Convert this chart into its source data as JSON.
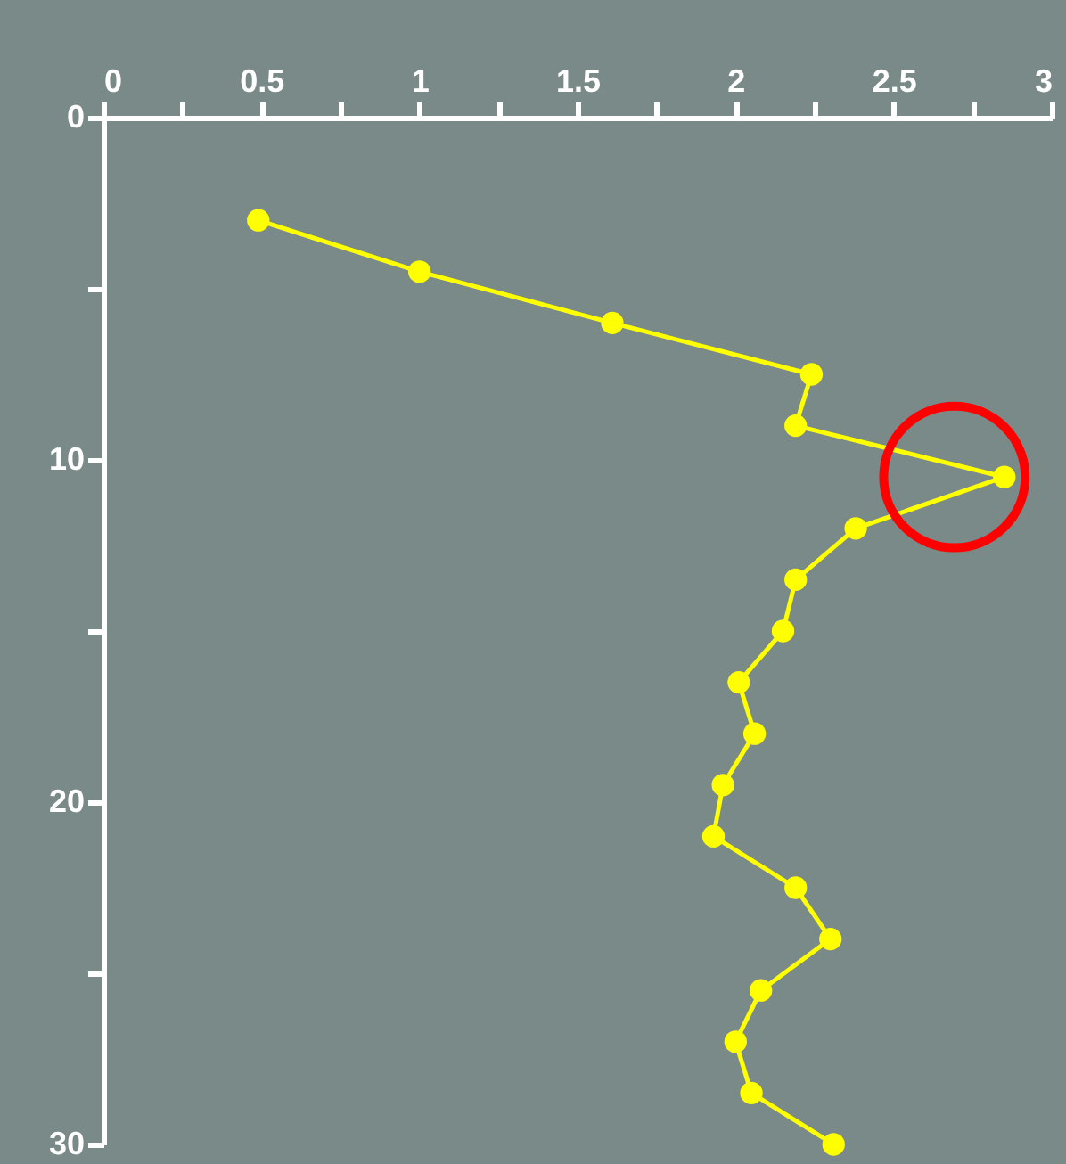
{
  "chart_data": {
    "type": "line",
    "x": [
      0.49,
      1.0,
      1.61,
      2.24,
      2.19,
      2.85,
      2.38,
      2.19,
      2.15,
      2.01,
      2.06,
      1.96,
      1.93,
      2.19,
      2.3,
      2.08,
      2.0,
      2.05,
      2.31
    ],
    "values": [
      3.0,
      4.5,
      6.0,
      7.5,
      9.0,
      10.5,
      12.0,
      13.5,
      15.0,
      16.5,
      18.0,
      19.5,
      21.0,
      22.5,
      24.0,
      25.5,
      27.0,
      28.5,
      30.0
    ],
    "color": "#ffff00",
    "marker": "circle",
    "line_style": "solid",
    "grid": false,
    "xlim": [
      0,
      3
    ],
    "ylim": [
      30,
      0
    ],
    "xticks": [
      0,
      {
        "value": 0.25,
        "label": null
      },
      0.5,
      {
        "value": 0.75,
        "label": null
      },
      1,
      {
        "value": 1.25,
        "label": null
      },
      1.5,
      {
        "value": 1.75,
        "label": null
      },
      2,
      {
        "value": 2.25,
        "label": null
      },
      2.5,
      {
        "value": 2.75,
        "label": null
      },
      3
    ],
    "yticks": [
      0,
      {
        "value": 5,
        "label": null
      },
      10,
      {
        "value": 15,
        "label": null
      },
      20,
      {
        "value": 25,
        "label": null
      },
      30
    ]
  }
}
